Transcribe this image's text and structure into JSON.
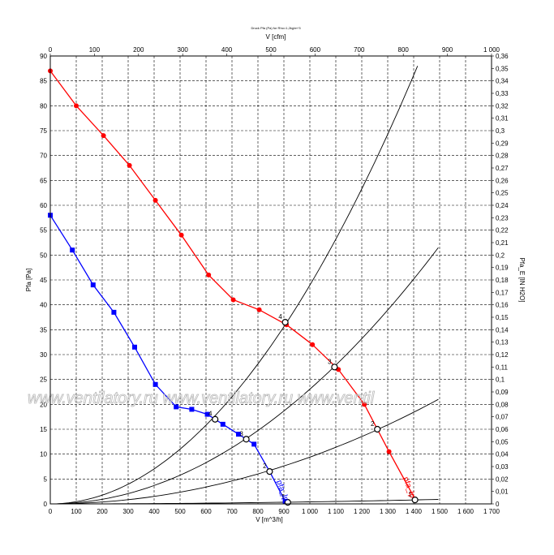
{
  "chart_data": {
    "type": "line",
    "title": "Druck Pfa (Pa) for Rho=1,2kg/m^3",
    "xlabel_bottom": "V [m^3/h]",
    "xlabel_top": "V [cfm]",
    "ylabel_left": "Pfa [Pa]",
    "ylabel_right": "Pfa_E [IN H2O]",
    "grid": true,
    "x_bottom_range": [
      0,
      1700
    ],
    "x_bottom_ticks": [
      "0",
      "100",
      "200",
      "300",
      "400",
      "500",
      "600",
      "700",
      "800",
      "900",
      "1 000",
      "1 100",
      "1 200",
      "1 300",
      "1 400",
      "1 500",
      "1 600",
      "1 700"
    ],
    "x_top_range": [
      0,
      1000
    ],
    "x_top_ticks": [
      "0",
      "100",
      "200",
      "300",
      "400",
      "500",
      "600",
      "700",
      "800",
      "900",
      "1 000"
    ],
    "y_left_range": [
      0,
      90
    ],
    "y_left_ticks": [
      "0",
      "5",
      "10",
      "15",
      "20",
      "25",
      "30",
      "35",
      "40",
      "45",
      "50",
      "55",
      "60",
      "65",
      "70",
      "75",
      "80",
      "85",
      "90"
    ],
    "y_right_range": [
      0,
      0.36
    ],
    "y_right_ticks": [
      "0",
      "0,01",
      "0,02",
      "0,03",
      "0,04",
      "0,05",
      "0,06",
      "0,07",
      "0,08",
      "0,09",
      "0,1",
      "0,11",
      "0,12",
      "0,13",
      "0,14",
      "0,15",
      "0,16",
      "0,17",
      "0,18",
      "0,19",
      "0,2",
      "0,21",
      "0,22",
      "0,23",
      "0,24",
      "0,25",
      "0,26",
      "0,27",
      "0,28",
      "0,29",
      "0,3",
      "0,31",
      "0,32",
      "0,33",
      "0,34",
      "0,35",
      "0,36"
    ],
    "series": [
      {
        "name": "pfa_lp",
        "color": "#ff0000",
        "marker": "circle",
        "x": [
          0,
          100,
          205,
          305,
          405,
          505,
          610,
          705,
          805,
          910,
          1010,
          1110,
          1210,
          1305,
          1405
        ],
        "y": [
          87,
          80,
          74,
          68,
          61,
          54,
          46,
          41,
          39,
          36,
          32,
          27,
          20,
          10.5,
          1
        ]
      },
      {
        "name": "pfa_lp",
        "color": "#0000ff",
        "marker": "square",
        "x": [
          0,
          85,
          165,
          245,
          325,
          405,
          485,
          545,
          605,
          665,
          725,
          785,
          845,
          905
        ],
        "y": [
          58,
          51,
          44,
          38.5,
          31.5,
          24,
          19.5,
          19,
          18,
          16,
          14,
          12,
          6.5,
          0.5
        ]
      }
    ],
    "system_curves": [
      {
        "x": [
          0,
          1415
        ],
        "y": [
          0,
          88
        ]
      },
      {
        "x": [
          0,
          1495
        ],
        "y": [
          0,
          51.5
        ]
      },
      {
        "x": [
          0,
          1495
        ],
        "y": [
          0,
          21
        ]
      },
      {
        "x": [
          0,
          1495
        ],
        "y": [
          0,
          0.9
        ]
      }
    ],
    "operating_points": [
      {
        "label": "4",
        "x": 905,
        "y": 36.5
      },
      {
        "label": "4",
        "x": 635,
        "y": 17
      },
      {
        "label": "3",
        "x": 1095,
        "y": 27.5
      },
      {
        "label": "3",
        "x": 755,
        "y": 13
      },
      {
        "label": "2",
        "x": 1260,
        "y": 15
      },
      {
        "label": "2",
        "x": 845,
        "y": 6.5
      },
      {
        "label": "1",
        "x": 1405,
        "y": 0.8
      },
      {
        "label": "1",
        "x": 915,
        "y": 0.3
      }
    ],
    "watermark": "www.ventilatory.ru     www.ventilatory.ru     www.ventil"
  }
}
